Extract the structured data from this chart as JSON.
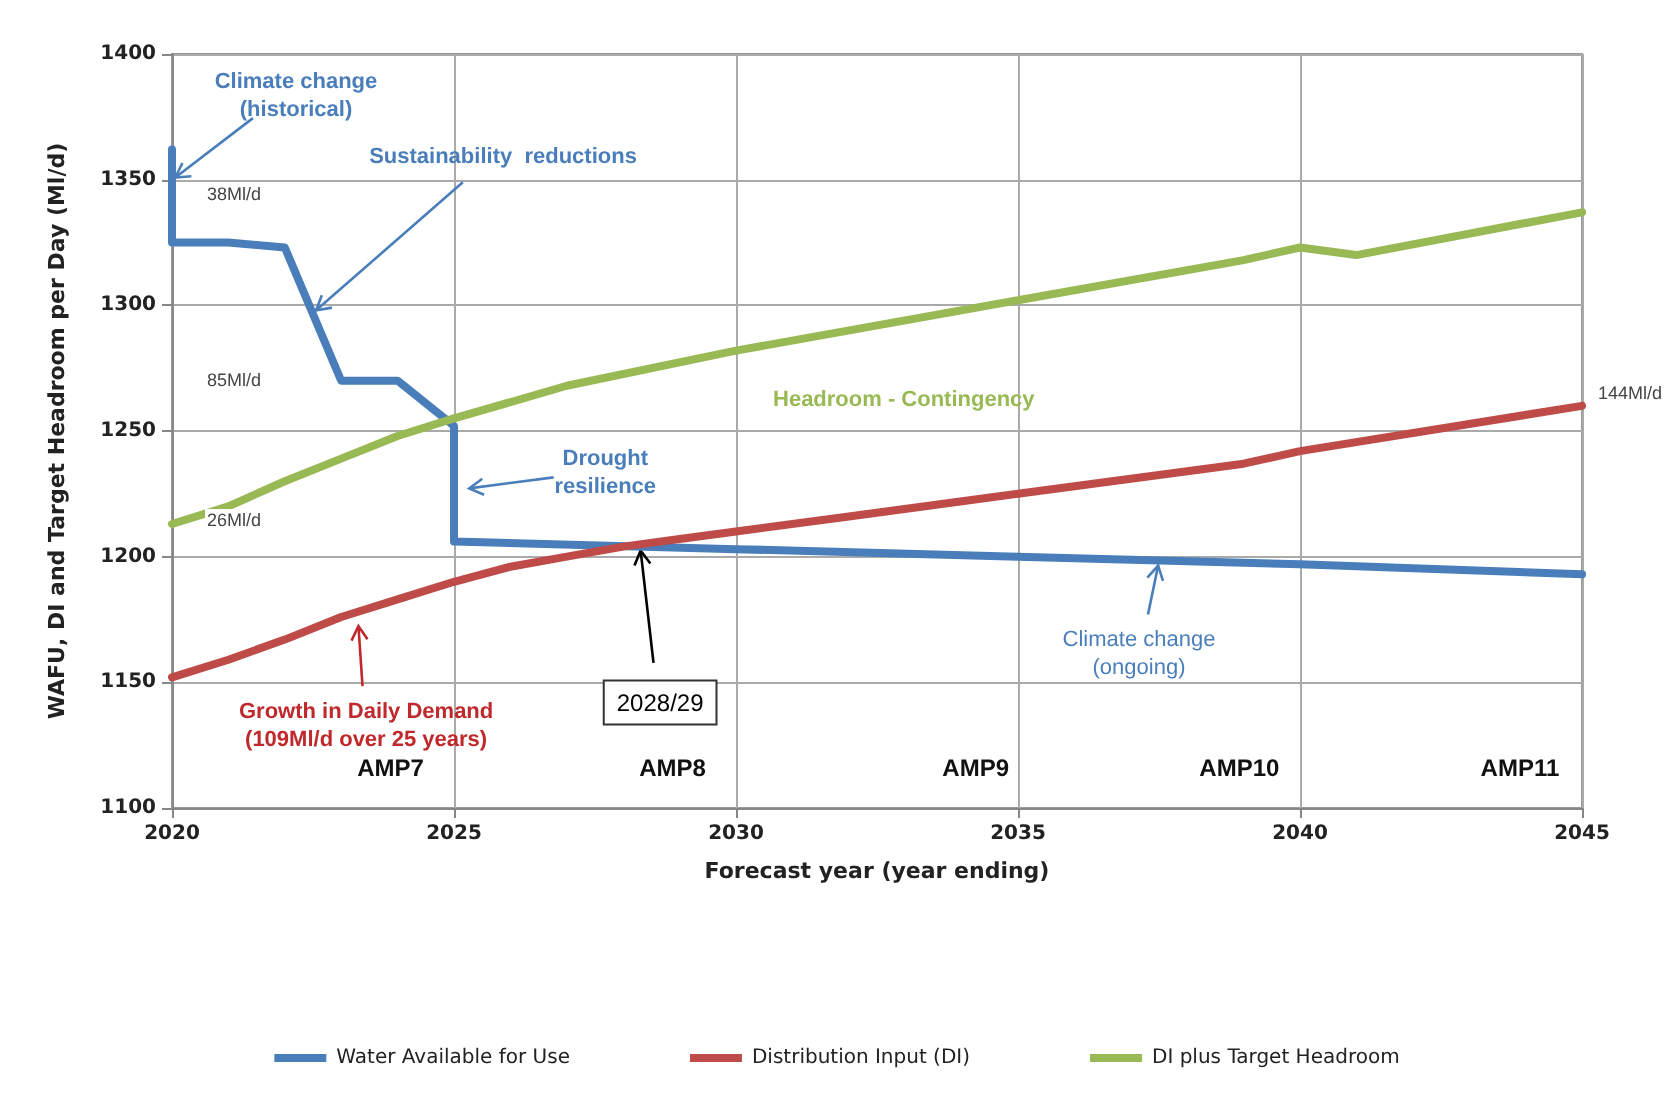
{
  "chart_data": {
    "type": "line",
    "xlabel": "Forecast year (year ending)",
    "ylabel": "WAFU, DI and Target Headroom per Day (Ml/d)",
    "xlim": [
      2020,
      2045
    ],
    "xticks": [
      2020,
      2025,
      2030,
      2035,
      2040,
      2045
    ],
    "ylim": [
      1100,
      1400
    ],
    "yticks": [
      1100,
      1150,
      1200,
      1250,
      1300,
      1350,
      1400
    ],
    "grid": true,
    "legend": "bottom",
    "marker": "none",
    "line_style": "solid",
    "series": [
      {
        "name": "Water Available for Use",
        "color": "#4a7ebb",
        "x": [
          2020,
          2020,
          2021,
          2022,
          2023,
          2024,
          2025,
          2025,
          2030,
          2035,
          2040,
          2045
        ],
        "values": [
          1362,
          1325,
          1325,
          1323,
          1270,
          1270,
          1252,
          1206,
          1203,
          1200,
          1197,
          1193
        ]
      },
      {
        "name": "Distribution Input (DI)",
        "color": "#be4b48",
        "x": [
          2020,
          2021,
          2022,
          2023,
          2024,
          2025,
          2026,
          2027,
          2028,
          2029,
          2030,
          2032,
          2035,
          2039,
          2040,
          2045
        ],
        "values": [
          1152,
          1159,
          1167,
          1176,
          1183,
          1190,
          1196,
          1200,
          1204,
          1207,
          1210,
          1216,
          1225,
          1237,
          1242,
          1260
        ]
      },
      {
        "name": "DI plus Target Headroom",
        "color": "#98b954",
        "x": [
          2020,
          2021,
          2022,
          2023,
          2024,
          2025,
          2027,
          2030,
          2035,
          2039,
          2040,
          2041,
          2045
        ],
        "values": [
          1213,
          1220,
          1230,
          1239,
          1248,
          1255,
          1268,
          1282,
          1302,
          1318,
          1323,
          1320,
          1337
        ]
      }
    ],
    "annotations": [
      {
        "text": "Climate change\n(historical)",
        "x": 2020,
        "y": 1350
      },
      {
        "text": "Sustainability  reductions",
        "x": 2022.5,
        "y": 1297
      },
      {
        "text": "Drought\nresilience",
        "x": 2025.2,
        "y": 1227
      },
      {
        "text": "2028/29",
        "x": 2028.3,
        "y": 1204
      },
      "Headroom - Contingency",
      {
        "text": "Growth in Daily Demand\n(109Ml/d over 25 years)",
        "x": 2023.3,
        "y": 1174
      },
      {
        "text": "Climate change\n(ongoing)",
        "x": 2037.5,
        "y": 1198
      },
      "38Ml/d",
      "85Ml/d",
      "26Ml/d",
      "144Ml/d",
      "AMP7",
      "AMP8",
      "AMP9",
      "AMP10",
      "AMP11"
    ]
  }
}
